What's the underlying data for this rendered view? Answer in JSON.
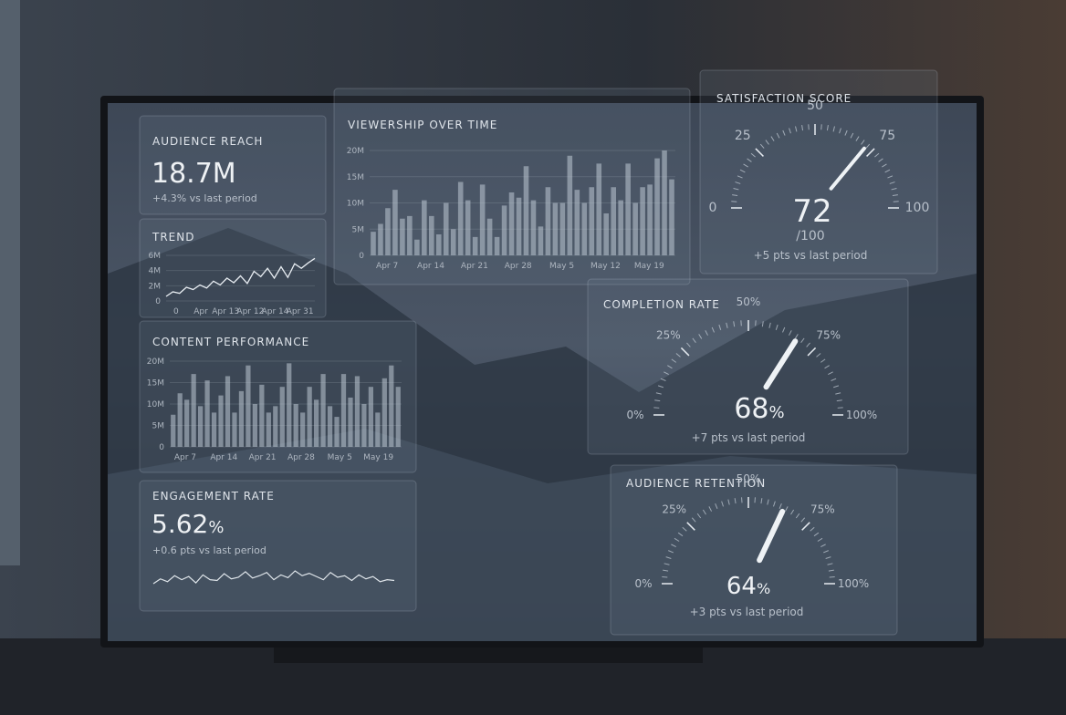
{
  "audience_reach": {
    "title": "AUDIENCE REACH",
    "value": "18.7M",
    "delta": "+4.3% vs last period"
  },
  "trend": {
    "type": "line",
    "title": "TREND",
    "values": [
      0.6,
      1.2,
      1.0,
      1.8,
      1.5,
      2.1,
      1.7,
      2.6,
      2.1,
      3.0,
      2.4,
      3.3,
      2.3,
      3.9,
      3.2,
      4.3,
      3.0,
      4.5,
      3.1,
      4.9,
      4.3,
      5.0,
      5.6
    ],
    "ylim": [
      0,
      6
    ],
    "yticks": [
      0,
      {
        "value": 2,
        "label": "2M"
      },
      {
        "value": 4,
        "label": "4M"
      },
      {
        "value": 6,
        "label": "6M"
      }
    ],
    "xtick_labels": [
      "0",
      "Apr",
      "Apr 13",
      "Apr 12",
      "Apr 14",
      "Apr 31"
    ]
  },
  "viewership": {
    "type": "bar",
    "title": "VIEWERSHIP OVER TIME",
    "values": [
      4.5,
      6,
      9,
      12.5,
      7,
      7.5,
      3,
      10.5,
      7.5,
      4,
      10,
      5,
      14,
      10.5,
      3.5,
      13.5,
      7,
      3.5,
      9.5,
      12,
      11,
      17,
      10.5,
      5.5,
      13,
      10,
      10,
      19,
      12.5,
      10,
      13,
      17.5,
      8,
      13,
      10.5,
      17.5,
      10,
      13,
      13.5,
      18.5,
      20,
      14.5
    ],
    "ylim": [
      0,
      20
    ],
    "yticks": [
      0,
      {
        "value": 5,
        "label": "5M"
      },
      {
        "value": 10,
        "label": "10M"
      },
      {
        "value": 15,
        "label": "15M"
      },
      {
        "value": 20,
        "label": "20M"
      }
    ],
    "xtick_labels": [
      "Apr 7",
      "Apr 14",
      "Apr 21",
      "Apr 28",
      "May 5",
      "May 12",
      "May 19"
    ]
  },
  "content_performance": {
    "type": "bar",
    "title": "CONTENT PERFORMANCE",
    "values": [
      7.5,
      12.5,
      11,
      17,
      9.5,
      15.5,
      8,
      12,
      16.5,
      8,
      13,
      19,
      10,
      14.5,
      8,
      9.5,
      14,
      19.5,
      10,
      8,
      14,
      11,
      17,
      9.5,
      7,
      17,
      11.5,
      16.5,
      10,
      14,
      8,
      16,
      19,
      14
    ],
    "ylim": [
      0,
      20
    ],
    "yticks": [
      0,
      {
        "value": 5,
        "label": "5M"
      },
      {
        "value": 10,
        "label": "10M"
      },
      {
        "value": 15,
        "label": "15M"
      },
      {
        "value": 20,
        "label": "20M"
      }
    ],
    "xtick_labels": [
      "Apr 7",
      "Apr 14",
      "Apr 21",
      "Apr 28",
      "May 5",
      "May 19"
    ]
  },
  "engagement": {
    "type": "sparkline",
    "title": "ENGAGEMENT RATE",
    "value": "5.62",
    "unit": "%",
    "delta": "+0.6 pts vs last period",
    "values": [
      5.5,
      5.62,
      5.55,
      5.7,
      5.6,
      5.68,
      5.52,
      5.72,
      5.6,
      5.58,
      5.75,
      5.62,
      5.66,
      5.8,
      5.64,
      5.7,
      5.78,
      5.6,
      5.72,
      5.65,
      5.82,
      5.7,
      5.76,
      5.68,
      5.6,
      5.78,
      5.66,
      5.7,
      5.58,
      5.72,
      5.62,
      5.68,
      5.55,
      5.6,
      5.58
    ]
  },
  "satisfaction": {
    "type": "gauge",
    "title": "SATISFACTION SCORE",
    "value": 72,
    "max_label": "/100",
    "delta": "+5 pts vs last period",
    "ylim": [
      0,
      100
    ],
    "yticks": [
      0,
      25,
      50,
      75,
      100
    ]
  },
  "completion": {
    "type": "gauge",
    "title": "COMPLETION RATE",
    "value": 68,
    "unit": "%",
    "delta": "+7 pts vs last period",
    "ylim": [
      0,
      100
    ],
    "yticks": [
      {
        "value": 0,
        "label": "0%"
      },
      {
        "value": 25,
        "label": "25%"
      },
      {
        "value": 50,
        "label": "50%"
      },
      {
        "value": 75,
        "label": "75%"
      },
      {
        "value": 100,
        "label": "100%"
      }
    ]
  },
  "retention": {
    "type": "gauge",
    "title": "AUDIENCE RETENTION",
    "value": 64,
    "unit": "%",
    "delta": "+3 pts vs last period",
    "ylim": [
      0,
      100
    ],
    "yticks": [
      {
        "value": 0,
        "label": "0%"
      },
      {
        "value": 25,
        "label": "25%"
      },
      {
        "value": 50,
        "label": "50%"
      },
      {
        "value": 75,
        "label": "75%"
      },
      {
        "value": 100,
        "label": "100%"
      }
    ]
  }
}
